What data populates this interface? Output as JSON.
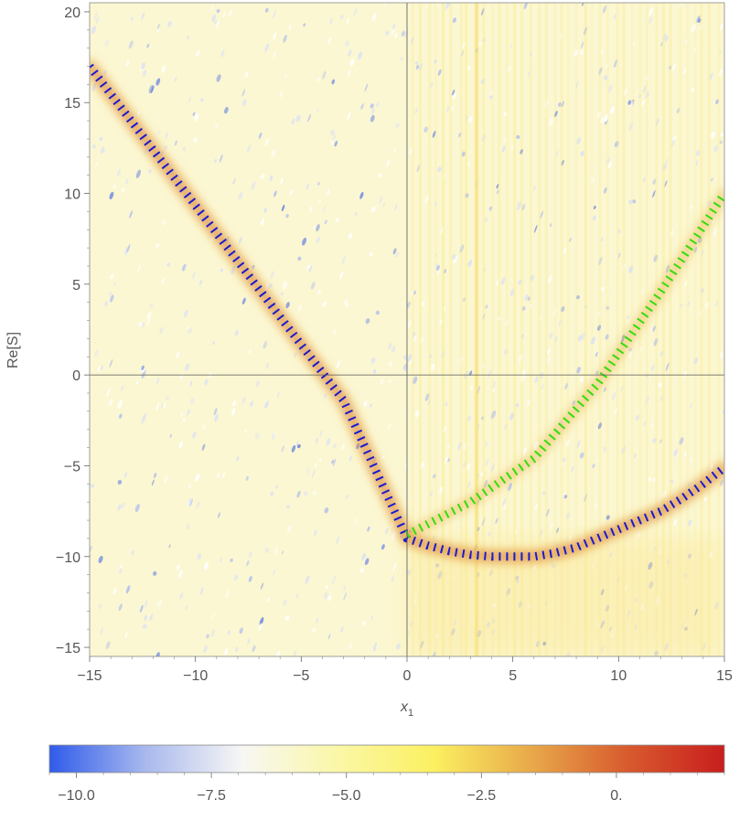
{
  "chart_data": {
    "type": "heatmap",
    "title": "",
    "xlabel": "x",
    "xlabel_subscript": "1",
    "ylabel": "Re[S]",
    "xlim": [
      -15,
      15
    ],
    "ylim": [
      -15.5,
      20.5
    ],
    "xticks": [
      -15,
      -10,
      -5,
      0,
      5,
      10,
      15
    ],
    "xtick_labels": [
      "−15",
      "−10",
      "−5",
      "0",
      "5",
      "10",
      "15"
    ],
    "yticks": [
      -15,
      -10,
      -5,
      0,
      5,
      10,
      15,
      20
    ],
    "ytick_labels": [
      "−15",
      "−10",
      "−5",
      "0",
      "5",
      "10",
      "15",
      "20"
    ],
    "grid": false,
    "axes_through_origin": true,
    "series": [
      {
        "color": "#1a1acc",
        "style": "dashed",
        "x": [
          -15,
          -12,
          -9,
          -6,
          -3,
          0,
          1,
          2,
          3,
          4,
          5,
          6,
          7,
          8,
          9,
          10,
          11,
          12,
          13,
          14,
          15
        ],
        "y": [
          17,
          12.4,
          7.8,
          3.2,
          -1.4,
          -9,
          -9.4,
          -9.7,
          -9.9,
          -10,
          -10,
          -10,
          -9.8,
          -9.5,
          -9.0,
          -8.5,
          -8.0,
          -7.5,
          -6.8,
          -6.0,
          -5.1
        ]
      },
      {
        "color": "#33dd11",
        "style": "dashed",
        "x": [
          0,
          3,
          6,
          9,
          12,
          15
        ],
        "y": [
          -8.8,
          -7.0,
          -4.6,
          -0.5,
          4.6,
          10.0
        ]
      }
    ],
    "colorbar": {
      "range": [
        -10.5,
        2
      ],
      "ticks": [
        -10,
        -7.5,
        -5,
        -2.5,
        0
      ],
      "tick_labels": [
        "−10.0",
        "−7.5",
        "−5.0",
        "−2.5",
        "0."
      ],
      "colors": [
        "#2f5bea",
        "#a9b9ee",
        "#f7f7f4",
        "#fbf7a6",
        "#fbf060",
        "#e8a94a",
        "#d85a2e",
        "#c81e1e"
      ]
    },
    "colors": {
      "background": "#fbf7d2",
      "ridge": "#e9b24e",
      "ridge_core": "#c83f1a"
    }
  }
}
